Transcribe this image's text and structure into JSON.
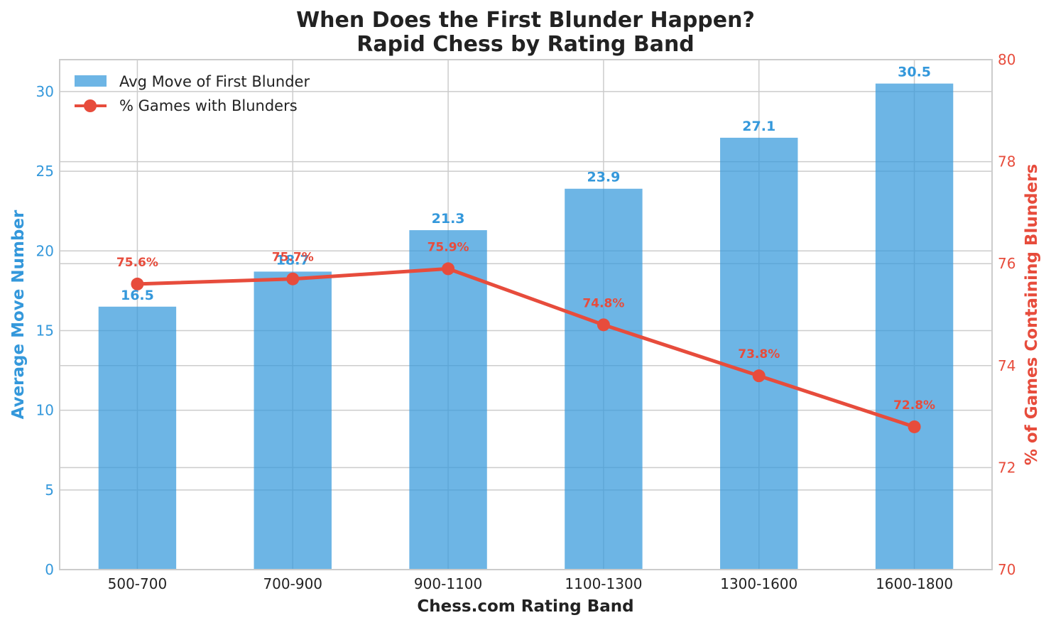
{
  "chart_data": {
    "type": "bar",
    "title_line1": "When Does the First Blunder Happen?",
    "title_line2": "Rapid Chess by Rating Band",
    "xlabel": "Chess.com Rating Band",
    "ylabel_left": "Average Move Number",
    "ylabel_right": "% of Games Containing Blunders",
    "categories": [
      "500-700",
      "700-900",
      "900-1100",
      "1100-1300",
      "1300-1600",
      "1600-1800"
    ],
    "series": [
      {
        "name": "Avg Move of First Blunder",
        "kind": "bar",
        "axis": "left",
        "color": "#3498db",
        "values": [
          16.5,
          18.7,
          21.3,
          23.9,
          27.1,
          30.5
        ],
        "labels": [
          "16.5",
          "18.7",
          "21.3",
          "23.9",
          "27.1",
          "30.5"
        ]
      },
      {
        "name": "% Games with Blunders",
        "kind": "line",
        "axis": "right",
        "color": "#e74c3c",
        "values": [
          75.6,
          75.7,
          75.9,
          74.8,
          73.8,
          72.8
        ],
        "labels": [
          "75.6%",
          "75.7%",
          "75.9%",
          "74.8%",
          "73.8%",
          "72.8%"
        ]
      }
    ],
    "ylim_left": [
      0,
      32
    ],
    "yticks_left": [
      0,
      5,
      10,
      15,
      20,
      25,
      30
    ],
    "ylim_right": [
      70,
      80
    ],
    "yticks_right": [
      70,
      72,
      74,
      76,
      78,
      80
    ],
    "grid": true,
    "legend_position": "top-left"
  }
}
